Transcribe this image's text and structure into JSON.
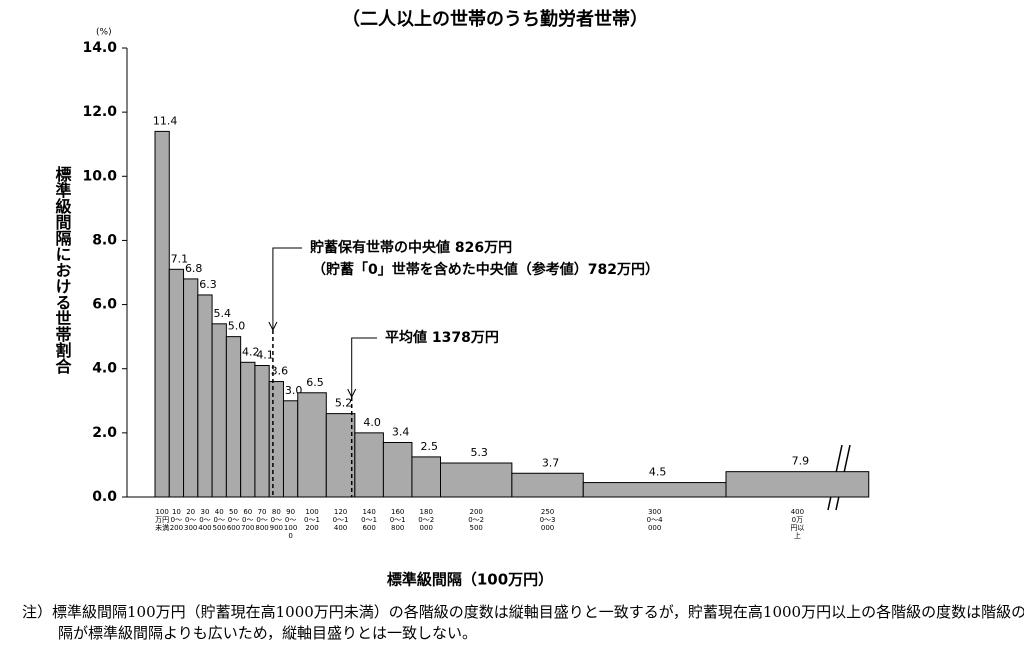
{
  "chart_data": {
    "type": "histogram",
    "title": "（二人以上の世帯のうち勤労者世帯）",
    "y_unit": "(%)",
    "ylabel": "標準級間隔における世帯割合",
    "xlabel": "標準級間隔（100万円）",
    "categories": [
      "100万円未満",
      "100〜200",
      "200〜300",
      "300〜400",
      "400〜500",
      "500〜600",
      "600〜700",
      "700〜800",
      "800〜900",
      "900〜1000",
      "1000〜1200",
      "1200〜1400",
      "1400〜1600",
      "1600〜1800",
      "1800〜2000",
      "2000〜2500",
      "2500〜3000",
      "3000〜4000",
      "4000万円以上"
    ],
    "bins": [
      0,
      100,
      200,
      300,
      400,
      500,
      600,
      700,
      800,
      900,
      1000,
      1200,
      1400,
      1600,
      1800,
      2000,
      2500,
      3000,
      4000,
      5000
    ],
    "values": [
      11.4,
      7.1,
      6.8,
      6.3,
      5.4,
      5.0,
      4.2,
      4.1,
      3.6,
      3.0,
      6.5,
      5.2,
      4.0,
      3.4,
      2.5,
      5.3,
      3.7,
      4.5,
      7.9
    ],
    "value_labels": [
      "11.4",
      "7.1",
      "6.8",
      "6.3",
      "5.4",
      "5.0",
      "4.2",
      "4.1",
      "3.6",
      "3.0",
      "6.5",
      "5.2",
      "4.0",
      "3.4",
      "2.5",
      "5.3",
      "3.7",
      "4.5",
      "7.9"
    ],
    "color": "#aaaaaa",
    "ylim": [
      0,
      14
    ],
    "yticks": [
      {
        "value": 0,
        "label": "0.0"
      },
      {
        "value": 2,
        "label": "2.0"
      },
      {
        "value": 4,
        "label": "4.0"
      },
      {
        "value": 6,
        "label": "6.0"
      },
      {
        "value": 8,
        "label": "8.0"
      },
      {
        "value": 10,
        "label": "10.0"
      },
      {
        "value": 12,
        "label": "12.0"
      },
      {
        "value": 14,
        "label": "14.0"
      }
    ],
    "annotations": [
      {
        "text": "貯蓄保有世帯の中央値 826万円",
        "x": 826
      },
      {
        "text": "（貯蓄「0」世帯を含めた中央値（参考値）782万円）"
      },
      {
        "text": "平均値 1378万円",
        "x": 1378
      }
    ],
    "note": "注）標準級間隔100万円（貯蓄現在高1000万円未満）の各階級の度数は縦軸目盛りと一致するが，貯蓄現在高1000万円以上の各階級の度数は階級の間隔が標準級間隔よりも広いため，縦軸目盛りとは一致しない。"
  }
}
